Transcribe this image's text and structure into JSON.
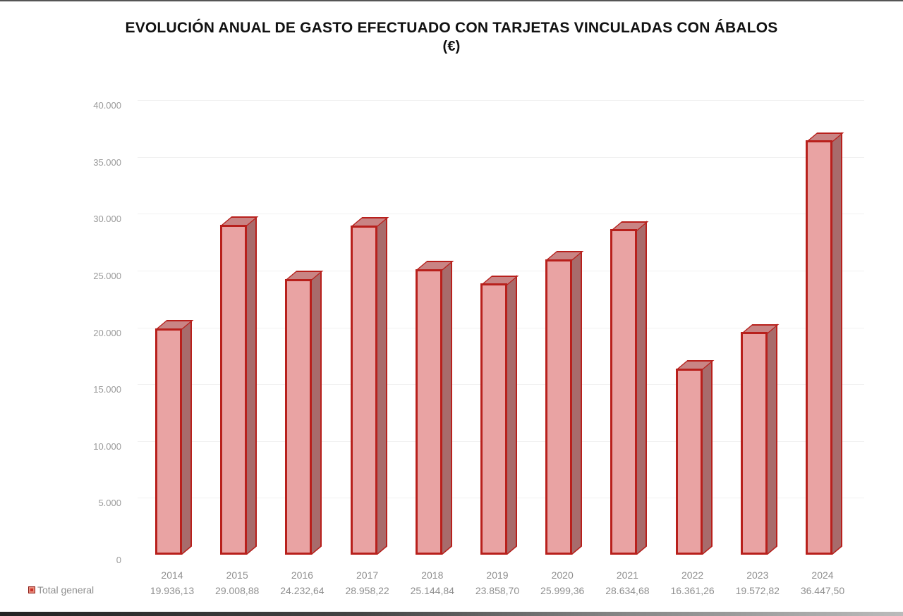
{
  "chart_data": {
    "type": "bar",
    "title": "EVOLUCIÓN ANUAL DE GASTO EFECTUADO CON TARJETAS VINCULADAS CON ÁBALOS",
    "subtitle": "(€)",
    "xlabel": "",
    "ylabel": "",
    "ylim": [
      0,
      40000
    ],
    "y_ticks": [
      "0",
      "5.000",
      "10.000",
      "15.000",
      "20.000",
      "25.000",
      "30.000",
      "35.000",
      "40.000"
    ],
    "categories": [
      "2014",
      "2015",
      "2016",
      "2017",
      "2018",
      "2019",
      "2020",
      "2021",
      "2022",
      "2023",
      "2024"
    ],
    "series": [
      {
        "name": "Total general",
        "values": [
          19936.13,
          29008.88,
          24232.64,
          28958.22,
          25144.84,
          23858.7,
          25999.36,
          28634.68,
          16361.26,
          19572.82,
          36447.5
        ],
        "labels": [
          "19.936,13",
          "29.008,88",
          "24.232,64",
          "28.958,22",
          "25.144,84",
          "23.858,70",
          "25.999,36",
          "28.634,68",
          "16.361,26",
          "19.572,82",
          "36.447,50"
        ]
      }
    ],
    "style": "3d-column",
    "grid": true,
    "legend_position": "data-table-bottom-left",
    "colors": {
      "bar_fill": "#e9a3a3",
      "bar_border": "#b8201c",
      "bar_side": "#a86b6b"
    }
  }
}
